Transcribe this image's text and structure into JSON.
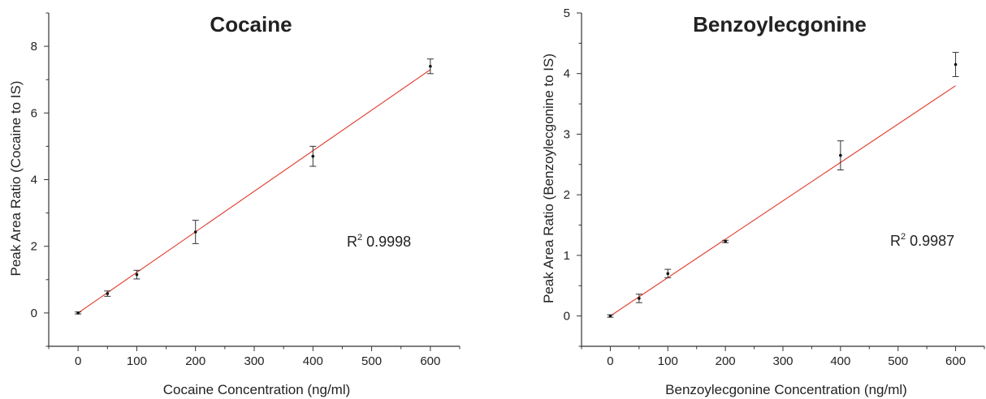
{
  "chart_data": [
    {
      "type": "scatter",
      "title": "Cocaine",
      "xlabel": "Cocaine Concentration (ng/ml)",
      "ylabel": "Peak Area Ratio (Cocaine to IS)",
      "xlim": [
        -50,
        650
      ],
      "ylim": [
        -1,
        9
      ],
      "x_ticks": [
        "0",
        "100",
        "200",
        "300",
        "400",
        "500",
        "600"
      ],
      "y_ticks": [
        "0",
        "2",
        "4",
        "6",
        "8"
      ],
      "points": [
        {
          "x": 0,
          "y": 0.0,
          "err": 0.03
        },
        {
          "x": 50,
          "y": 0.58,
          "err": 0.08
        },
        {
          "x": 100,
          "y": 1.15,
          "err": 0.13
        },
        {
          "x": 200,
          "y": 2.43,
          "err": 0.35
        },
        {
          "x": 400,
          "y": 4.7,
          "err": 0.3
        },
        {
          "x": 600,
          "y": 7.4,
          "err": 0.22
        }
      ],
      "fit_line": {
        "x": [
          0,
          600
        ],
        "y": [
          0.0,
          7.3
        ],
        "color": "#e0392b"
      },
      "r2_label": "R",
      "r2_exp": "2",
      "r2_value": " 0.9998",
      "grid": false
    },
    {
      "type": "scatter",
      "title": "Benzoylecgonine",
      "xlabel": "Benzoylecgonine Concentration (ng/ml)",
      "ylabel": "Peak Area Ratio (Benzoylecgonine to IS)",
      "xlim": [
        -50,
        650
      ],
      "ylim": [
        -0.5,
        5
      ],
      "x_ticks": [
        "0",
        "100",
        "200",
        "300",
        "400",
        "500",
        "600"
      ],
      "y_ticks": [
        "0",
        "1",
        "2",
        "3",
        "4",
        "5"
      ],
      "points": [
        {
          "x": 0,
          "y": 0.0,
          "err": 0.02
        },
        {
          "x": 50,
          "y": 0.29,
          "err": 0.07
        },
        {
          "x": 100,
          "y": 0.7,
          "err": 0.07
        },
        {
          "x": 200,
          "y": 1.23,
          "err": 0.02
        },
        {
          "x": 400,
          "y": 2.65,
          "err": 0.24
        },
        {
          "x": 600,
          "y": 4.15,
          "err": 0.2
        }
      ],
      "fit_line": {
        "x": [
          0,
          600
        ],
        "y": [
          0.0,
          3.8
        ],
        "color": "#e0392b"
      },
      "r2_label": "R",
      "r2_exp": "2",
      "r2_value": " 0.9987",
      "grid": false
    }
  ]
}
